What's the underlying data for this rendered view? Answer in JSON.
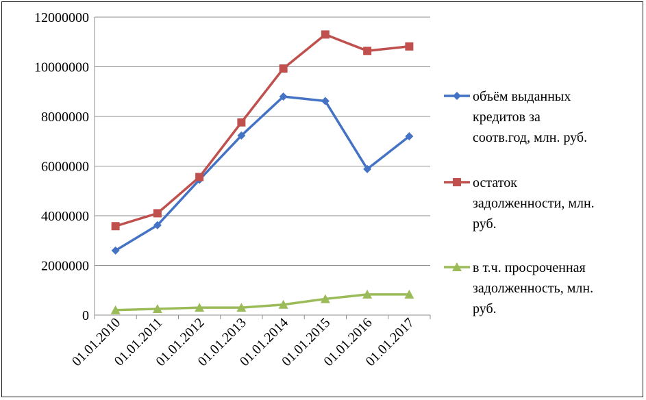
{
  "chart_data": {
    "type": "line",
    "categories": [
      "01.01.2010",
      "01.01.2011",
      "01.01.2012",
      "01.01.2013",
      "01.01.2014",
      "01.01.2015",
      "01.01.2016",
      "01.01.2017"
    ],
    "ylim": [
      0,
      12000000
    ],
    "yticks": [
      "0",
      "2000000",
      "4000000",
      "6000000",
      "8000000",
      "10000000",
      "12000000"
    ],
    "grid": true,
    "legend_position": "right",
    "series": [
      {
        "name": "объём выданных кредитов за соотв.год, млн. руб.",
        "legend_lines": [
          "объём выданных",
          "кредитов за",
          "соотв.год, млн. руб."
        ],
        "color": "#4472C4",
        "marker": "diamond",
        "values": [
          2600000,
          3620000,
          5450000,
          7230000,
          8800000,
          8620000,
          5880000,
          7200000
        ]
      },
      {
        "name": "остаток задолженности, млн. руб.",
        "legend_lines": [
          "остаток",
          "задолженности, млн.",
          "руб."
        ],
        "color": "#C0504D",
        "marker": "square",
        "values": [
          3580000,
          4100000,
          5560000,
          7760000,
          9930000,
          11300000,
          10640000,
          10820000
        ]
      },
      {
        "name": "в т.ч. просроченная задолженность, млн. руб.",
        "legend_lines": [
          "в т.ч. просроченная",
          "задолженность, млн.",
          "руб."
        ],
        "color": "#9BBB59",
        "marker": "triangle",
        "values": [
          200000,
          250000,
          300000,
          300000,
          420000,
          650000,
          830000,
          830000
        ]
      }
    ]
  }
}
